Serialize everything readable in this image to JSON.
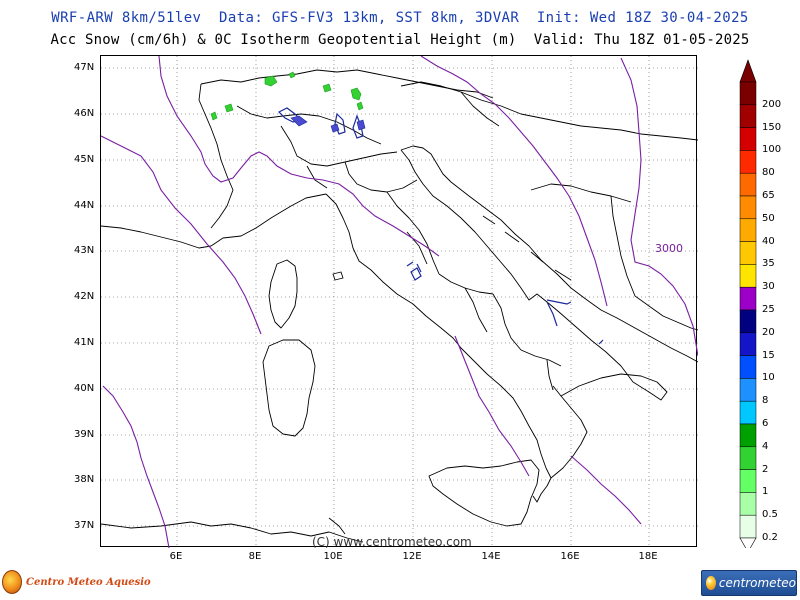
{
  "header": {
    "line1": "WRF-ARW 8km/51lev  Data: GFS-FV3 13km, SST 8km, 3DVAR  Init: Wed 18Z 30-04-2025",
    "line2": "Acc Snow (cm/6h) & 0C Isotherm Geopotential Height (m)  Valid: Thu 18Z 01-05-2025"
  },
  "map": {
    "watermark": "(C) www.centrometeo.com",
    "isotherm_label": "3000",
    "lat_labels": [
      "47N",
      "46N",
      "45N",
      "44N",
      "43N",
      "42N",
      "41N",
      "40N",
      "39N",
      "38N",
      "37N"
    ],
    "lon_labels": [
      "6E",
      "8E",
      "10E",
      "12E",
      "14E",
      "16E",
      "18E"
    ],
    "colors": {
      "coast": "#000000",
      "isotherm": "#7a1fa2",
      "grid": "#888888"
    }
  },
  "legend": {
    "labels": [
      "200",
      "150",
      "100",
      "80",
      "65",
      "50",
      "40",
      "35",
      "30",
      "25",
      "20",
      "15",
      "10",
      "8",
      "6",
      "4",
      "2",
      "1",
      "0.5",
      "0.2"
    ],
    "colors": [
      "#7a0000",
      "#a00000",
      "#d40000",
      "#ff2a00",
      "#ff6a00",
      "#ff8c00",
      "#ffaa00",
      "#ffc800",
      "#ffe400",
      "#9c00c8",
      "#000080",
      "#1414c8",
      "#0050ff",
      "#1e90ff",
      "#00c8ff",
      "#00a000",
      "#32d232",
      "#64ff64",
      "#a8ffa8",
      "#e6ffe6"
    ]
  },
  "logos": {
    "left": "Centro Meteo Aquesio",
    "right": "centrometeo"
  }
}
